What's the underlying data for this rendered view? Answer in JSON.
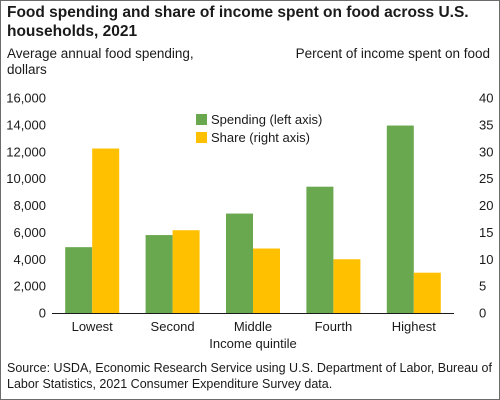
{
  "chart_data": {
    "type": "bar",
    "title": "Food spending and share of income spent on food across U.S. households, 2021",
    "xlabel": "Income quintile",
    "ylabel_left": "Average annual food spending, dollars",
    "ylabel_right": "Percent of income spent on food",
    "categories": [
      "Lowest",
      "Second",
      "Middle",
      "Fourth",
      "Highest"
    ],
    "series": [
      {
        "name": "Spending (left axis)",
        "axis": "left",
        "color": "#6aa84f",
        "values": [
          4900,
          5800,
          7400,
          9400,
          13950
        ]
      },
      {
        "name": "Share (right axis)",
        "axis": "right",
        "color": "#ffc000",
        "values": [
          30.6,
          15.4,
          12.0,
          10.0,
          7.5
        ]
      }
    ],
    "ylim_left": [
      0,
      16000
    ],
    "yticks_left": [
      0,
      2000,
      4000,
      6000,
      8000,
      10000,
      12000,
      14000,
      16000
    ],
    "ytick_labels_left": [
      "0",
      "2,000",
      "4,000",
      "6,000",
      "8,000",
      "10,000",
      "12,000",
      "14,000",
      "16,000"
    ],
    "ylim_right": [
      0,
      40
    ],
    "yticks_right": [
      0,
      5,
      10,
      15,
      20,
      25,
      30,
      35,
      40
    ],
    "ytick_labels_right": [
      "0",
      "5",
      "10",
      "15",
      "20",
      "25",
      "30",
      "35",
      "40"
    ],
    "grid": false,
    "legend_position": "top-center",
    "source": "Source: USDA, Economic Research Service using U.S. Department of Labor, Bureau of Labor Statistics, 2021 Consumer Expenditure Survey data."
  }
}
